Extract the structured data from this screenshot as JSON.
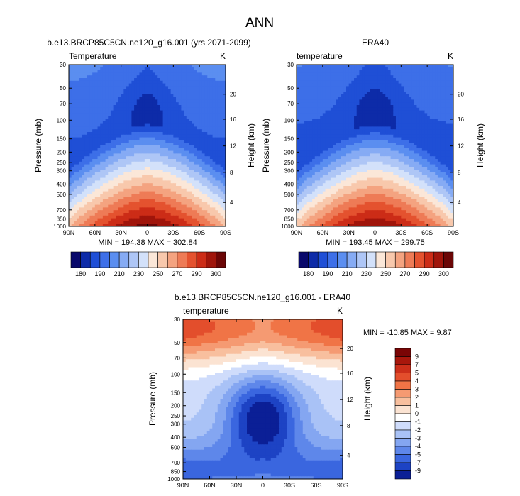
{
  "figure_title": "ANN",
  "chart_data": [
    {
      "type": "heatmap",
      "title": "b.e13.BRCP85C5CN.ne120_g16.001 (yrs 2071-2099)",
      "left_label": "Temperature",
      "units": "K",
      "ylabel": "Pressure (mb)",
      "y2label": "Height (km)",
      "x_ticks": [
        "90N",
        "60N",
        "30N",
        "0",
        "30S",
        "60S",
        "90S"
      ],
      "y_ticks": [
        "30",
        "50",
        "70",
        "100",
        "150",
        "200",
        "250",
        "300",
        "400",
        "500",
        "700",
        "850",
        "1000"
      ],
      "y2_ticks": [
        "20",
        "16",
        "12",
        "8",
        "4"
      ],
      "stats": "MIN = 194.38  MAX = 302.84",
      "min": 194.38,
      "max": 302.84,
      "colorbar": {
        "orientation": "horizontal",
        "labels": [
          "180",
          "190",
          "210",
          "230",
          "250",
          "270",
          "290",
          "300"
        ],
        "colors": [
          "#08086b",
          "#0d2ba8",
          "#1f4fd6",
          "#3d6fe8",
          "#5b8ef0",
          "#86abf4",
          "#aec6f6",
          "#d3e1fa",
          "#fbe7d8",
          "#f8c8ac",
          "#f4a380",
          "#ee7b56",
          "#e4522f",
          "#cc2c17",
          "#a0150b",
          "#6b0606"
        ]
      }
    },
    {
      "type": "heatmap",
      "title": "ERA40",
      "left_label": "temperature",
      "units": "K",
      "ylabel": "Pressure (mb)",
      "y2label": "Height (km)",
      "x_ticks": [
        "90N",
        "60N",
        "30N",
        "0",
        "30S",
        "60S",
        "90S"
      ],
      "y_ticks": [
        "30",
        "50",
        "70",
        "100",
        "150",
        "200",
        "250",
        "300",
        "400",
        "500",
        "700",
        "850",
        "1000"
      ],
      "y2_ticks": [
        "20",
        "16",
        "12",
        "8",
        "4"
      ],
      "stats": "MIN = 193.45  MAX = 299.75",
      "min": 193.45,
      "max": 299.75,
      "colorbar": {
        "orientation": "horizontal",
        "labels": [
          "180",
          "190",
          "210",
          "230",
          "250",
          "270",
          "290",
          "300"
        ],
        "colors": [
          "#08086b",
          "#0d2ba8",
          "#1f4fd6",
          "#3d6fe8",
          "#5b8ef0",
          "#86abf4",
          "#aec6f6",
          "#d3e1fa",
          "#fbe7d8",
          "#f8c8ac",
          "#f4a380",
          "#ee7b56",
          "#e4522f",
          "#cc2c17",
          "#a0150b",
          "#6b0606"
        ]
      }
    },
    {
      "type": "heatmap",
      "title": "b.e13.BRCP85C5CN.ne120_g16.001 - ERA40",
      "left_label": "temperature",
      "units": "K",
      "ylabel": "Pressure (mb)",
      "y2label": "Height (km)",
      "x_ticks": [
        "90N",
        "60N",
        "30N",
        "0",
        "30S",
        "60S",
        "90S"
      ],
      "y_ticks": [
        "30",
        "50",
        "70",
        "100",
        "150",
        "200",
        "250",
        "300",
        "400",
        "500",
        "700",
        "850",
        "1000"
      ],
      "y2_ticks": [
        "20",
        "16",
        "12",
        "8",
        "4"
      ],
      "stats": "MIN = -10.85  MAX =  9.87",
      "min": -10.85,
      "max": 9.87,
      "colorbar": {
        "orientation": "vertical",
        "labels": [
          "9",
          "7",
          "5",
          "4",
          "3",
          "2",
          "1",
          "0",
          "-1",
          "-2",
          "-3",
          "-4",
          "-5",
          "-7",
          "-9"
        ],
        "colors": [
          "#7a0505",
          "#a8170c",
          "#cc2f1a",
          "#e34e2c",
          "#f07446",
          "#f59a72",
          "#f8bf9e",
          "#fbe3d2",
          "#ffffff",
          "#cfdcfb",
          "#a9c2f6",
          "#84a6f1",
          "#5e87ea",
          "#3a66df",
          "#1d43c4",
          "#0b1f96"
        ]
      }
    }
  ]
}
